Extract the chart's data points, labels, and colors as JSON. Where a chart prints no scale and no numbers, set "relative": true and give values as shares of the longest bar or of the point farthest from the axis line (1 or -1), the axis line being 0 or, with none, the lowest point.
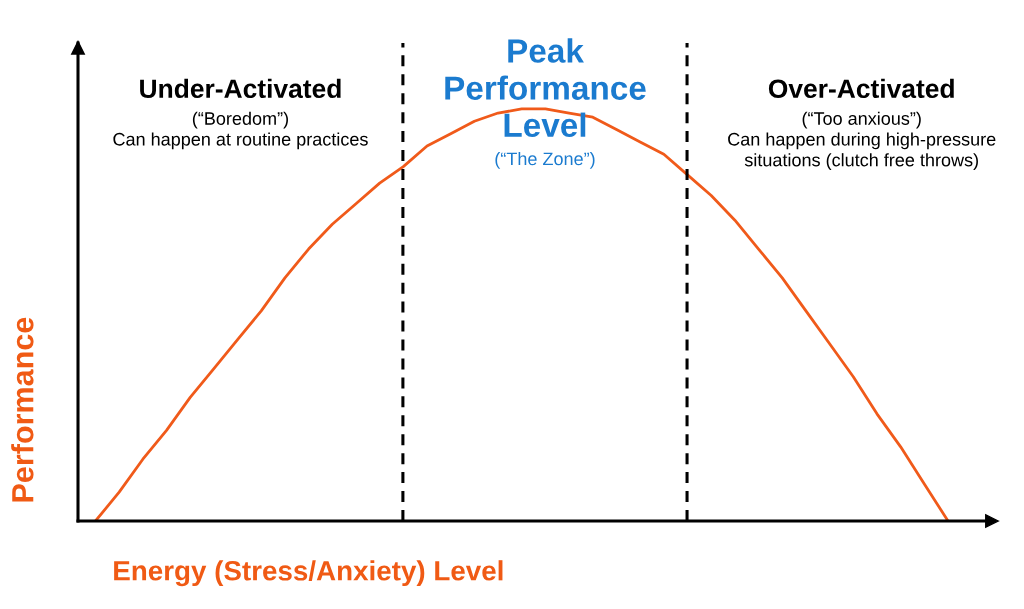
{
  "chart_data": {
    "type": "line",
    "relative": true,
    "xlabel": "Energy (Stress/Anxiety) Level",
    "ylabel": "Performance",
    "categories": [
      null,
      null,
      null,
      null,
      null,
      null,
      null,
      null,
      null,
      null,
      null,
      null,
      null,
      null,
      null,
      null,
      null,
      null,
      null,
      null,
      null,
      null,
      null,
      null,
      null,
      null,
      null,
      null,
      null,
      null,
      null,
      null,
      null,
      null,
      null,
      null,
      null
    ],
    "series": [
      {
        "color": "#f05a1a",
        "values": [
          0,
          0.07,
          0.15,
          0.22,
          0.3,
          0.37,
          0.44,
          0.51,
          0.59,
          0.66,
          0.72,
          0.77,
          0.82,
          0.86,
          0.91,
          0.94,
          0.97,
          0.99,
          1,
          1,
          0.99,
          0.98,
          0.95,
          0.92,
          0.89,
          0.84,
          0.79,
          0.73,
          0.66,
          0.59,
          0.51,
          0.43,
          0.35,
          0.26,
          0.18,
          0.09,
          0
        ]
      }
    ],
    "annotations": [
      "Under-Activated",
      "(“Boredom”)\nCan happen at routine practices",
      "Peak\nPerformance\nLevel",
      "(“The Zone”)",
      "Over-Activated",
      "(“Too anxious”)\nCan happen during high-pressure\nsituations (clutch free throws)"
    ]
  }
}
